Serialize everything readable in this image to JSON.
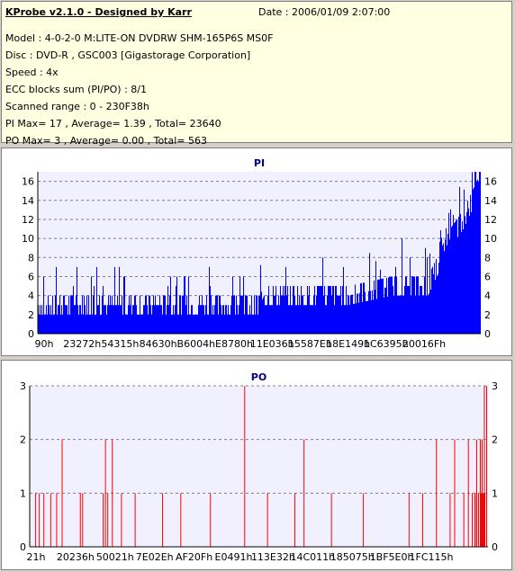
{
  "header": {
    "title": "KProbe v2.1.0 - Designed by Karr",
    "date": "Date : 2006/01/09 2:07:00",
    "lines": [
      "Model : 4-0-2-0 M:LITE-ON DVDRW SHM-165P6S MS0F",
      "Disc : DVD-R , GSC003 [Gigastorage Corporation]",
      "Speed : 4x",
      "ECC blocks sum (PI/PO) : 8/1",
      "Scanned range : 0 - 230F38h",
      "PI Max= 17 , Average= 1.39 , Total= 23640",
      "PO Max= 3 , Average= 0.00 , Total= 563"
    ]
  },
  "colors": {
    "pi": "#0000ff",
    "po": "#ff0000",
    "title": "#000080",
    "plot_bg": "#f0f0ff"
  },
  "chart_data": [
    {
      "type": "bar",
      "title": "PI",
      "ylim": [
        0,
        17
      ],
      "yticks": [
        0,
        2,
        4,
        6,
        8,
        10,
        12,
        14,
        16
      ],
      "xlabels": [
        "90h",
        "23272h",
        "54315h",
        "84630h",
        "B6004h",
        "E8780h",
        "11E036h",
        "15587Eh",
        "18E149h",
        "1C6395h",
        "20016Fh"
      ],
      "grid": true,
      "profile": [
        [
          0.0,
          2
        ],
        [
          0.05,
          2
        ],
        [
          0.1,
          2
        ],
        [
          0.2,
          2
        ],
        [
          0.3,
          2
        ],
        [
          0.4,
          2
        ],
        [
          0.5,
          2
        ],
        [
          0.51,
          3
        ],
        [
          0.6,
          3
        ],
        [
          0.7,
          3
        ],
        [
          0.8,
          4
        ],
        [
          0.88,
          4
        ],
        [
          0.9,
          6
        ],
        [
          0.93,
          9
        ],
        [
          0.96,
          11
        ],
        [
          0.98,
          13
        ],
        [
          1.0,
          15
        ]
      ],
      "max": 17
    },
    {
      "type": "bar",
      "title": "PO",
      "ylim": [
        0,
        3
      ],
      "yticks": [
        0,
        1,
        2,
        3
      ],
      "xlabels": [
        "21h",
        "20236h",
        "50021h",
        "7E02Eh",
        "AF20Fh",
        "E0491h",
        "113E32h",
        "14C011h",
        "185075h",
        "1BF5E0h",
        "1FC115h"
      ],
      "grid": true,
      "spikes": [
        [
          0.012,
          1
        ],
        [
          0.02,
          1
        ],
        [
          0.03,
          1
        ],
        [
          0.045,
          1
        ],
        [
          0.058,
          1
        ],
        [
          0.07,
          2
        ],
        [
          0.11,
          1
        ],
        [
          0.115,
          1
        ],
        [
          0.16,
          1
        ],
        [
          0.165,
          2
        ],
        [
          0.17,
          1
        ],
        [
          0.18,
          2
        ],
        [
          0.2,
          1
        ],
        [
          0.23,
          1
        ],
        [
          0.29,
          1
        ],
        [
          0.33,
          1
        ],
        [
          0.395,
          1
        ],
        [
          0.47,
          3
        ],
        [
          0.52,
          1
        ],
        [
          0.58,
          1
        ],
        [
          0.6,
          2
        ],
        [
          0.66,
          1
        ],
        [
          0.73,
          1
        ],
        [
          0.83,
          1
        ],
        [
          0.86,
          1
        ],
        [
          0.89,
          2
        ],
        [
          0.92,
          1
        ],
        [
          0.93,
          2
        ],
        [
          0.95,
          1
        ],
        [
          0.96,
          2
        ],
        [
          0.975,
          1
        ],
        [
          0.99,
          2
        ],
        [
          0.995,
          3
        ],
        [
          1.0,
          3
        ]
      ],
      "max": 3
    }
  ]
}
